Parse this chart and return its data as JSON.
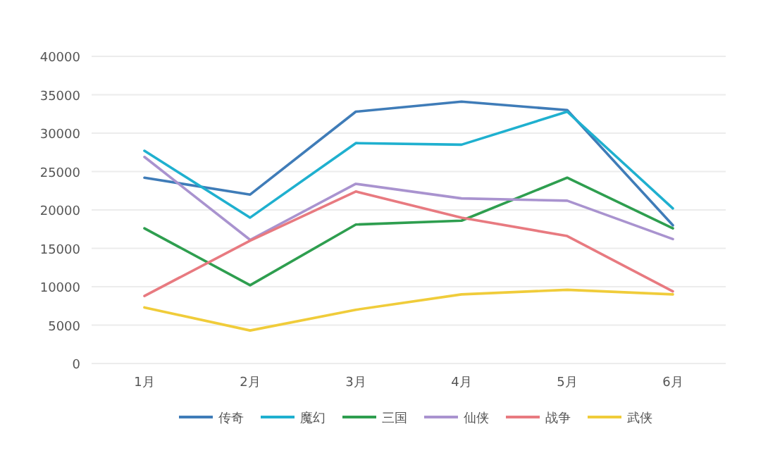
{
  "chart_data": {
    "type": "line",
    "categories": [
      "1月",
      "2月",
      "3月",
      "4月",
      "5月",
      "6月"
    ],
    "series": [
      {
        "name": "传奇",
        "color": "#3f7cb8",
        "values": [
          24200,
          22000,
          32800,
          34100,
          33000,
          18000
        ]
      },
      {
        "name": "魔幻",
        "color": "#1fb0cf",
        "values": [
          27700,
          19000,
          28700,
          28500,
          32800,
          20200
        ]
      },
      {
        "name": "三国",
        "color": "#2e9e4f",
        "values": [
          17600,
          10200,
          18100,
          18600,
          24200,
          17600
        ]
      },
      {
        "name": "仙侠",
        "color": "#a993cf",
        "values": [
          26900,
          16100,
          23400,
          21500,
          21200,
          16200
        ]
      },
      {
        "name": "战争",
        "color": "#e87a80",
        "values": [
          8800,
          16000,
          22400,
          19000,
          16600,
          9400
        ]
      },
      {
        "name": "武侠",
        "color": "#f0cc3a",
        "values": [
          7300,
          4300,
          7000,
          9000,
          9600,
          9000
        ]
      }
    ],
    "ylim": [
      0,
      40000
    ],
    "yticks": [
      0,
      5000,
      10000,
      15000,
      20000,
      25000,
      30000,
      35000,
      40000
    ],
    "grid": "y",
    "legend": "bottom",
    "marker": "none",
    "line_style": "solid"
  }
}
